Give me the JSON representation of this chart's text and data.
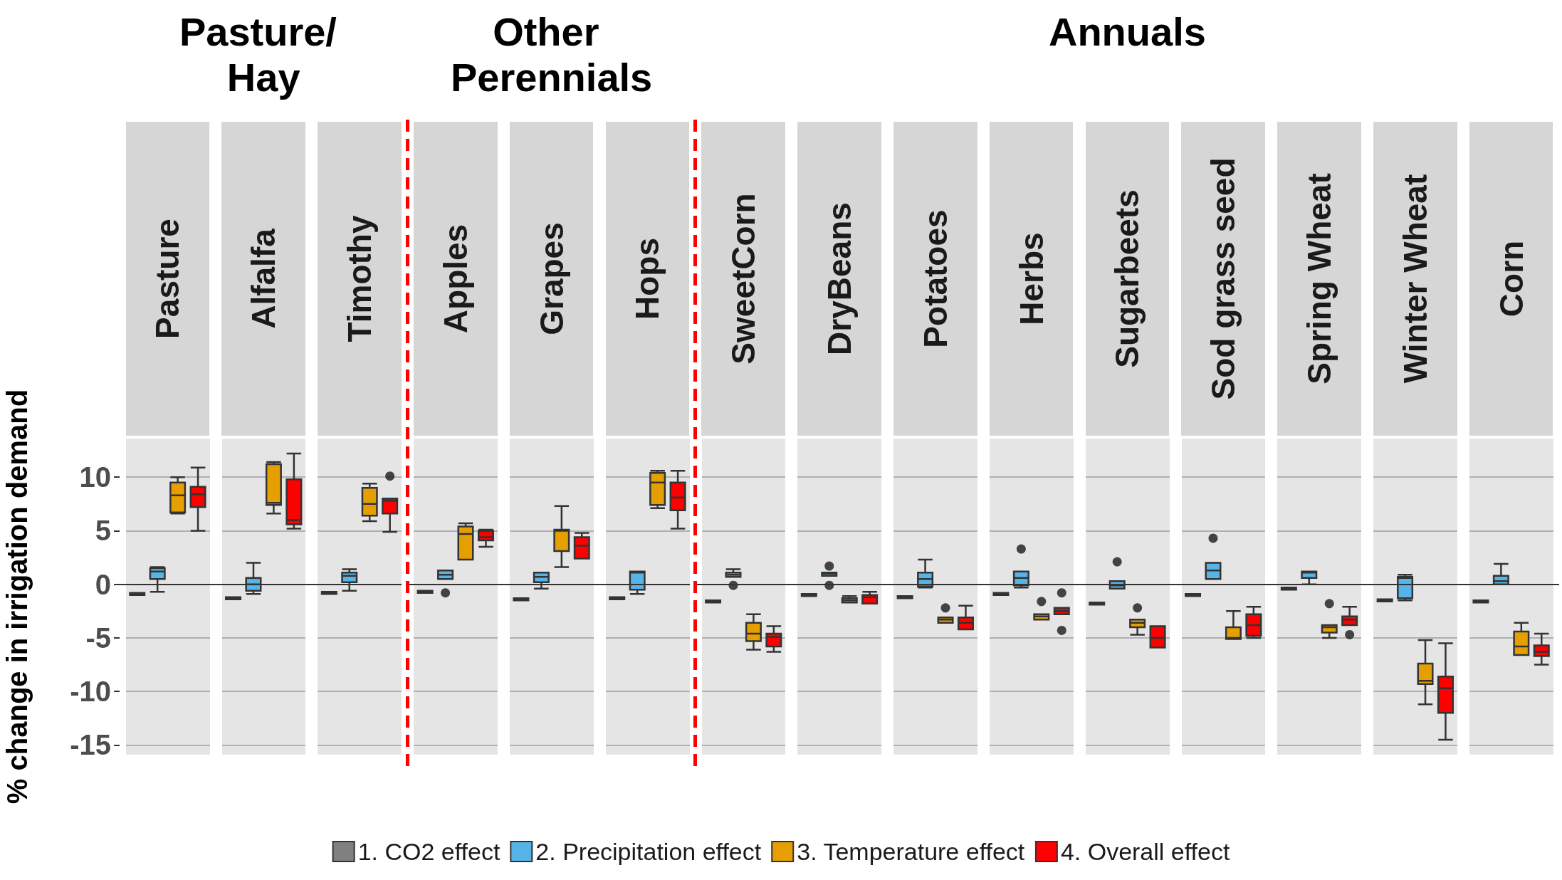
{
  "chart_data": [
    {
      "type": "box",
      "title": "Pasture/ Hay",
      "ylabel": "% change in irrigation demand",
      "categories": [
        "Pasture",
        "Alfalfa",
        "Timothy"
      ],
      "series": [
        {
          "color": "#808080",
          "boxes": [
            {
              "low": -1.0,
              "q1": -1.0,
              "median": -0.9,
              "q3": -0.8,
              "high": -0.8
            },
            {
              "low": -1.4,
              "q1": -1.4,
              "median": -1.3,
              "q3": -1.2,
              "high": -1.2
            },
            {
              "low": -0.9,
              "q1": -0.9,
              "median": -0.8,
              "q3": -0.7,
              "high": -0.7
            }
          ]
        },
        {
          "color": "#56b4e9",
          "boxes": [
            {
              "low": -0.7,
              "q1": 0.5,
              "median": 1.2,
              "q3": 1.5,
              "high": 1.6
            },
            {
              "low": -0.9,
              "q1": -0.6,
              "median": 0,
              "q3": 0.6,
              "high": 2.0
            },
            {
              "low": -0.6,
              "q1": 0.2,
              "median": 0.8,
              "q3": 1.1,
              "high": 1.4
            }
          ]
        },
        {
          "color": "#e69f00",
          "boxes": [
            {
              "low": 6.6,
              "q1": 6.7,
              "median": 8.3,
              "q3": 9.5,
              "high": 10
            },
            {
              "low": 6.6,
              "q1": 7.4,
              "median": 7.6,
              "q3": 11.2,
              "high": 11.4
            },
            {
              "low": 5.9,
              "q1": 6.4,
              "median": 7.5,
              "q3": 9.0,
              "high": 9.4
            }
          ]
        },
        {
          "color": "#ff0000",
          "boxes": [
            {
              "low": 5.0,
              "q1": 7.2,
              "median": 8.4,
              "q3": 9.1,
              "high": 10.9
            },
            {
              "low": 5.2,
              "q1": 5.6,
              "median": 6.0,
              "q3": 9.8,
              "high": 12.2
            },
            {
              "low": 4.9,
              "q1": 6.6,
              "median": 7.8,
              "q3": 8.0,
              "high": 8.0,
              "outliers": [
                10.1
              ]
            }
          ]
        }
      ],
      "ylim": [
        -15.9,
        13.6
      ],
      "yticks": [
        -15,
        -10,
        -5,
        0,
        5,
        10
      ],
      "grid": "y",
      "ref_lines": [
        {
          "axis": "y",
          "value": 0,
          "color": "#333333",
          "line_style": "solid"
        }
      ]
    },
    {
      "type": "box",
      "title": "Other Perennials",
      "categories": [
        "Apples",
        "Grapes",
        "Hops"
      ],
      "series": [
        {
          "color": "#808080",
          "boxes": [
            {
              "low": -0.8,
              "q1": -0.8,
              "median": -0.7,
              "q3": -0.6,
              "high": -0.6
            },
            {
              "low": -1.5,
              "q1": -1.5,
              "median": -1.4,
              "q3": -1.3,
              "high": -1.3
            },
            {
              "low": -1.4,
              "q1": -1.4,
              "median": -1.3,
              "q3": -1.2,
              "high": -1.2
            }
          ]
        },
        {
          "color": "#56b4e9",
          "boxes": [
            {
              "low": 0.5,
              "q1": 0.5,
              "median": 0.9,
              "q3": 1.3,
              "high": 1.3,
              "outliers": [
                -0.8
              ]
            },
            {
              "low": -0.4,
              "q1": 0.2,
              "median": 0.7,
              "q3": 1.1,
              "high": 1.1
            },
            {
              "low": -0.9,
              "q1": -0.5,
              "median": 1.1,
              "q3": 1.2,
              "high": 1.2
            }
          ]
        },
        {
          "color": "#e69f00",
          "boxes": [
            {
              "low": 2.3,
              "q1": 2.3,
              "median": 4.7,
              "q3": 5.4,
              "high": 5.7
            },
            {
              "low": 1.6,
              "q1": 3.1,
              "median": 5.0,
              "q3": 5.1,
              "high": 7.3
            },
            {
              "low": 7.1,
              "q1": 7.4,
              "median": 9.5,
              "q3": 10.4,
              "high": 10.6
            }
          ]
        },
        {
          "color": "#ff0000",
          "boxes": [
            {
              "low": 3.5,
              "q1": 4.1,
              "median": 4.4,
              "q3": 5.0,
              "high": 5.1
            },
            {
              "low": 2.4,
              "q1": 2.4,
              "median": 3.6,
              "q3": 4.4,
              "high": 4.8
            },
            {
              "low": 5.2,
              "q1": 6.9,
              "median": 8.1,
              "q3": 9.5,
              "high": 10.6
            }
          ]
        }
      ],
      "ylim": [
        -15.9,
        13.6
      ],
      "yticks": [
        -15,
        -10,
        -5,
        0,
        5,
        10
      ],
      "grid": "y",
      "tick_labels": "x",
      "ref_lines": [
        {
          "axis": "y",
          "value": 0,
          "color": "#333333",
          "line_style": "solid"
        }
      ]
    },
    {
      "type": "box",
      "title": "Annuals",
      "categories": [
        "SweetCorn",
        "DryBeans",
        "Potatoes",
        "Herbs",
        "Sugarbeets",
        "Sod grass seed",
        "Spring Wheat",
        "Winter Wheat",
        "Corn"
      ],
      "series": [
        {
          "name": "1. CO2 effect",
          "color": "#808080",
          "boxes": [
            {
              "low": -1.7,
              "q1": -1.7,
              "median": -1.6,
              "q3": -1.5,
              "high": -1.5
            },
            {
              "low": -1.1,
              "q1": -1.1,
              "median": -1.0,
              "q3": -0.9,
              "high": -0.9
            },
            {
              "low": -1.3,
              "q1": -1.3,
              "median": -1.2,
              "q3": -1.1,
              "high": -1.1
            },
            {
              "low": -1.0,
              "q1": -1.0,
              "median": -0.9,
              "q3": -0.8,
              "high": -0.8
            },
            {
              "low": -1.9,
              "q1": -1.9,
              "median": -1.8,
              "q3": -1.7,
              "high": -1.7
            },
            {
              "low": -1.1,
              "q1": -1.1,
              "median": -1.0,
              "q3": -0.9,
              "high": -0.9
            },
            {
              "low": -0.5,
              "q1": -0.5,
              "median": -0.4,
              "q3": -0.3,
              "high": -0.3
            },
            {
              "low": -1.6,
              "q1": -1.6,
              "median": -1.5,
              "q3": -1.4,
              "high": -1.4
            },
            {
              "low": -1.7,
              "q1": -1.7,
              "median": -1.6,
              "q3": -1.5,
              "high": -1.5
            }
          ]
        },
        {
          "name": "2. Precipitation effect",
          "color": "#56b4e9",
          "boxes": [
            {
              "low": 0.7,
              "q1": 0.7,
              "median": 0.9,
              "q3": 1.1,
              "high": 1.4,
              "outliers": [
                -0.1
              ]
            },
            {
              "low": 0.8,
              "q1": 0.8,
              "median": 1.0,
              "q3": 1.1,
              "high": 1.1,
              "outliers": [
                1.7,
                -0.1
              ]
            },
            {
              "low": -0.3,
              "q1": -0.2,
              "median": 0.5,
              "q3": 1.1,
              "high": 2.3
            },
            {
              "low": -0.3,
              "q1": -0.1,
              "median": 0.6,
              "q3": 1.2,
              "high": 1.2,
              "outliers": [
                3.3
              ]
            },
            {
              "low": -0.4,
              "q1": -0.4,
              "median": -0.1,
              "q3": 0.3,
              "high": 0.3,
              "outliers": [
                2.1
              ]
            },
            {
              "low": 0.5,
              "q1": 0.5,
              "median": 1.3,
              "q3": 2.0,
              "high": 2.0,
              "outliers": [
                4.3
              ]
            },
            {
              "low": 0,
              "q1": 0.6,
              "median": 1.1,
              "q3": 1.2,
              "high": 1.2
            },
            {
              "low": -1.5,
              "q1": -1.3,
              "median": 0.6,
              "q3": 0.7,
              "high": 0.9
            },
            {
              "low": 0,
              "q1": 0,
              "median": 0.3,
              "q3": 0.8,
              "high": 1.9
            }
          ]
        },
        {
          "name": "3. Temperature effect",
          "color": "#e69f00",
          "boxes": [
            {
              "low": -6.1,
              "q1": -5.3,
              "median": -4.6,
              "q3": -3.6,
              "high": -2.8
            },
            {
              "low": -1.7,
              "q1": -1.7,
              "median": -1.5,
              "q3": -1.3,
              "high": -1.1
            },
            {
              "low": -3.6,
              "q1": -3.6,
              "median": -3.3,
              "q3": -3.1,
              "high": -3.1,
              "outliers": [
                -2.2
              ]
            },
            {
              "low": -3.3,
              "q1": -3.3,
              "median": -3.0,
              "q3": -2.8,
              "high": -2.8,
              "outliers": [
                -1.6
              ]
            },
            {
              "low": -4.7,
              "q1": -4.0,
              "median": -3.6,
              "q3": -3.3,
              "high": -3.3,
              "outliers": [
                -2.2
              ]
            },
            {
              "low": -5.1,
              "q1": -5.1,
              "median": -5.0,
              "q3": -4.0,
              "high": -2.5
            },
            {
              "low": -5.0,
              "q1": -4.5,
              "median": -4.0,
              "q3": -3.8,
              "high": -3.8,
              "outliers": [
                -1.8
              ]
            },
            {
              "low": -11.2,
              "q1": -9.3,
              "median": -9.0,
              "q3": -7.4,
              "high": -5.2
            },
            {
              "low": -6.6,
              "q1": -6.6,
              "median": -5.8,
              "q3": -4.4,
              "high": -3.6
            }
          ]
        },
        {
          "name": "4. Overall effect",
          "color": "#ff0000",
          "boxes": [
            {
              "low": -6.3,
              "q1": -5.8,
              "median": -4.9,
              "q3": -4.6,
              "high": -3.9
            },
            {
              "low": -1.8,
              "q1": -1.8,
              "median": -1.2,
              "q3": -1.0,
              "high": -0.7
            },
            {
              "low": -4.2,
              "q1": -4.2,
              "median": -3.6,
              "q3": -3.1,
              "high": -2.0
            },
            {
              "low": -2.8,
              "q1": -2.8,
              "median": -2.5,
              "q3": -2.2,
              "high": -2.2,
              "outliers": [
                -0.8,
                -4.3
              ]
            },
            {
              "low": -5.9,
              "q1": -5.9,
              "median": -5.0,
              "q3": -3.9,
              "high": -3.9
            },
            {
              "low": -5.0,
              "q1": -4.8,
              "median": -3.8,
              "q3": -2.8,
              "high": -2.1
            },
            {
              "low": -3.8,
              "q1": -3.8,
              "median": -3.3,
              "q3": -3.0,
              "high": -2.1,
              "outliers": [
                -4.7
              ]
            },
            {
              "low": -14.5,
              "q1": -12.0,
              "median": -9.7,
              "q3": -8.6,
              "high": -5.5
            },
            {
              "low": -7.5,
              "q1": -6.7,
              "median": -6.3,
              "q3": -5.7,
              "high": -4.6
            }
          ]
        }
      ],
      "ylim": [
        -15.9,
        13.6
      ],
      "yticks": [
        -15,
        -10,
        -5,
        0,
        5,
        10
      ],
      "grid": "y",
      "tick_labels": "x",
      "legend": "bottom",
      "ref_lines": [
        {
          "axis": "y",
          "value": 0,
          "color": "#333333",
          "line_style": "solid"
        }
      ]
    }
  ]
}
